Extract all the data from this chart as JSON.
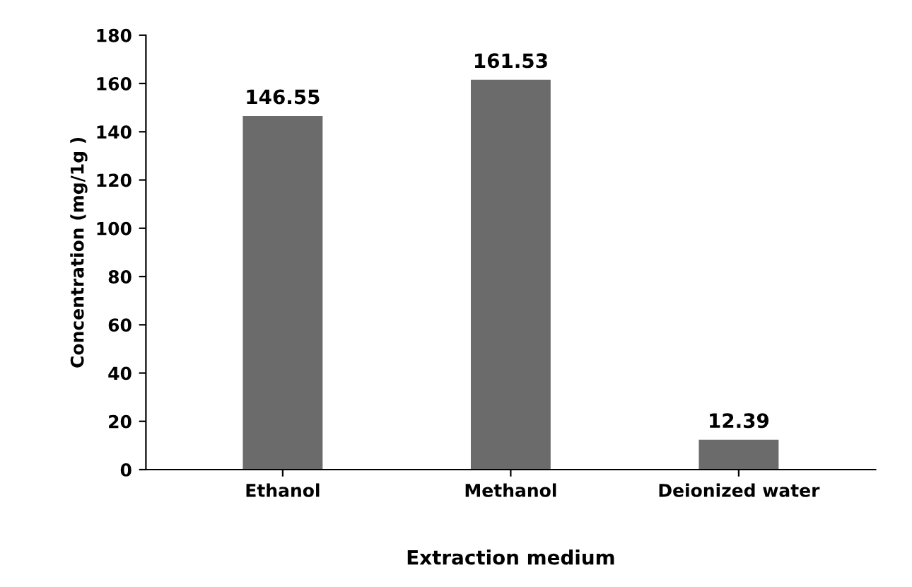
{
  "chart_data": {
    "type": "bar",
    "xlabel": "Extraction medium",
    "ylabel": "Concentration (mg/1g )",
    "categories": [
      "Ethanol",
      "Methanol",
      "Deionized water"
    ],
    "values": [
      146.55,
      161.53,
      12.39
    ],
    "color": "#6b6b6b",
    "ylim": [
      0,
      180
    ],
    "yticks": [
      0,
      20,
      40,
      60,
      80,
      100,
      120,
      140,
      160,
      180
    ],
    "data_labels": true,
    "grid": false,
    "legend": false
  }
}
